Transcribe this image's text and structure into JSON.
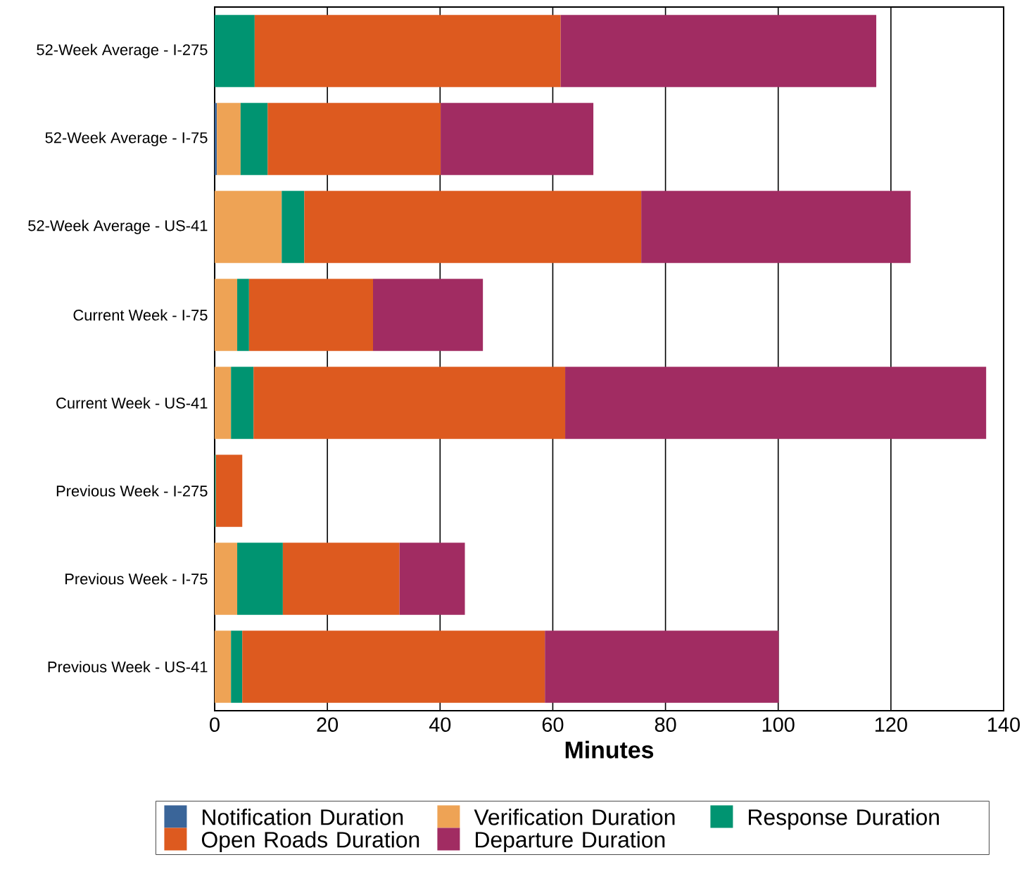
{
  "chart_data": {
    "type": "bar",
    "orientation": "horizontal",
    "stacked": true,
    "xlabel": "Minutes",
    "categories": [
      "52-Week Average - I-275",
      "52-Week Average - I-75",
      "52-Week Average - US-41",
      "Current Week - I-75",
      "Current Week - US-41",
      "Previous Week - I-275",
      "Previous Week - I-75",
      "Previous Week - US-41"
    ],
    "series": [
      {
        "name": "Notification Duration",
        "color": "#3a6599",
        "values": [
          null,
          0.4,
          null,
          null,
          null,
          null,
          null,
          null
        ]
      },
      {
        "name": "Verification Duration",
        "color": "#eea355",
        "values": [
          null,
          4.2,
          11.9,
          4.0,
          2.9,
          null,
          4.0,
          2.9
        ]
      },
      {
        "name": "Response Duration",
        "color": "#009471",
        "values": [
          7.1,
          4.8,
          4.0,
          2.1,
          4.0,
          0.2,
          8.1,
          2.0
        ]
      },
      {
        "name": "Open Roads Duration",
        "color": "#dd5a1f",
        "values": [
          54.3,
          30.7,
          59.8,
          22.0,
          55.3,
          4.7,
          20.7,
          53.7
        ]
      },
      {
        "name": "Departure Duration",
        "color": "#a12c62",
        "values": [
          56.0,
          27.1,
          47.8,
          19.5,
          74.7,
          null,
          11.6,
          41.5
        ]
      }
    ],
    "xlim": [
      0,
      140
    ],
    "xticks": [
      0,
      20,
      40,
      60,
      80,
      100,
      120,
      140
    ],
    "grid": "x",
    "legend": "bottom"
  }
}
